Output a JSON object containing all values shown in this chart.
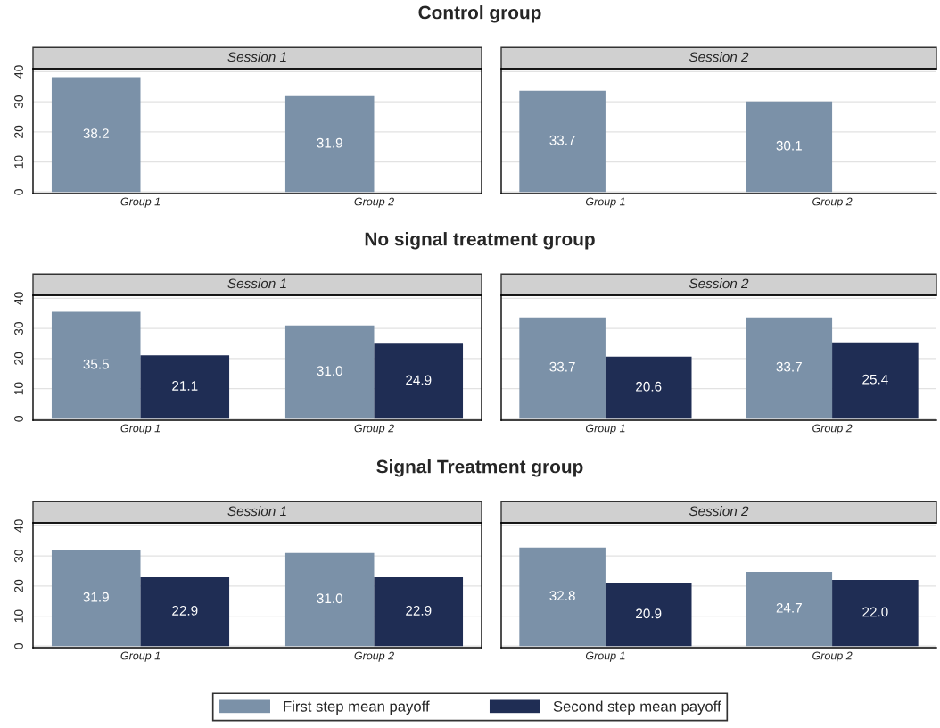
{
  "chart_data": [
    {
      "type": "bar",
      "title": "Control group",
      "subtitle": "Session 1",
      "categories": [
        "Group 1",
        "Group 2"
      ],
      "ylim": [
        -0.5,
        41
      ],
      "yticks": [
        0,
        10,
        20,
        30,
        40
      ],
      "grid": "y",
      "series": [
        {
          "color": "#7b91a8",
          "values": [
            38.2,
            31.9
          ],
          "value_labels": [
            "38.2",
            "31.9"
          ]
        },
        {
          "color": "#1f2d54",
          "values": [
            0,
            0
          ],
          "value_labels": [
            null,
            null
          ]
        }
      ]
    },
    {
      "type": "bar",
      "subtitle": "Session 2",
      "categories": [
        "Group 1",
        "Group 2"
      ],
      "ylim": [
        -0.5,
        41
      ],
      "yticks": [
        0,
        10,
        20,
        30,
        40
      ],
      "grid": "y",
      "tick_labels": "x",
      "series": [
        {
          "color": "#7b91a8",
          "values": [
            33.7,
            30.1
          ],
          "value_labels": [
            "33.7",
            "30.1"
          ]
        },
        {
          "color": "#1f2d54",
          "values": [
            0,
            0
          ],
          "value_labels": [
            null,
            null
          ]
        }
      ]
    },
    {
      "type": "bar",
      "title": "No signal treatment group",
      "subtitle": "Session 1",
      "categories": [
        "Group 1",
        "Group 2"
      ],
      "ylim": [
        -0.5,
        41
      ],
      "yticks": [
        0,
        10,
        20,
        30,
        40
      ],
      "grid": "y",
      "series": [
        {
          "color": "#7b91a8",
          "values": [
            35.5,
            31.0
          ],
          "value_labels": [
            "35.5",
            "31.0"
          ]
        },
        {
          "color": "#1f2d54",
          "values": [
            21.1,
            24.9
          ],
          "value_labels": [
            "21.1",
            "24.9"
          ]
        }
      ]
    },
    {
      "type": "bar",
      "subtitle": "Session 2",
      "categories": [
        "Group 1",
        "Group 2"
      ],
      "ylim": [
        -0.5,
        41
      ],
      "yticks": [
        0,
        10,
        20,
        30,
        40
      ],
      "grid": "y",
      "tick_labels": "x",
      "series": [
        {
          "color": "#7b91a8",
          "values": [
            33.7,
            33.7
          ],
          "value_labels": [
            "33.7",
            "33.7"
          ]
        },
        {
          "color": "#1f2d54",
          "values": [
            20.6,
            25.4
          ],
          "value_labels": [
            "20.6",
            "25.4"
          ]
        }
      ]
    },
    {
      "type": "bar",
      "title": "Signal Treatment group",
      "subtitle": "Session 1",
      "categories": [
        "Group 1",
        "Group 2"
      ],
      "ylim": [
        -0.5,
        41
      ],
      "yticks": [
        0,
        10,
        20,
        30,
        40
      ],
      "grid": "y",
      "series": [
        {
          "color": "#7b91a8",
          "values": [
            31.9,
            31.0
          ],
          "value_labels": [
            "31.9",
            "31.0"
          ]
        },
        {
          "color": "#1f2d54",
          "values": [
            22.9,
            22.9
          ],
          "value_labels": [
            "22.9",
            "22.9"
          ]
        }
      ]
    },
    {
      "type": "bar",
      "subtitle": "Session 2",
      "categories": [
        "Group 1",
        "Group 2"
      ],
      "ylim": [
        -0.5,
        41
      ],
      "yticks": [
        0,
        10,
        20,
        30,
        40
      ],
      "grid": "y",
      "legend": "bottom",
      "tick_labels": "x",
      "series": [
        {
          "name": "First step mean payoff",
          "color": "#7b91a8",
          "values": [
            32.8,
            24.7
          ],
          "value_labels": [
            "32.8",
            "24.7"
          ]
        },
        {
          "name": "Second step mean payoff",
          "color": "#1f2d54",
          "values": [
            20.9,
            22.0
          ],
          "value_labels": [
            "20.9",
            "22.0"
          ]
        }
      ]
    }
  ]
}
